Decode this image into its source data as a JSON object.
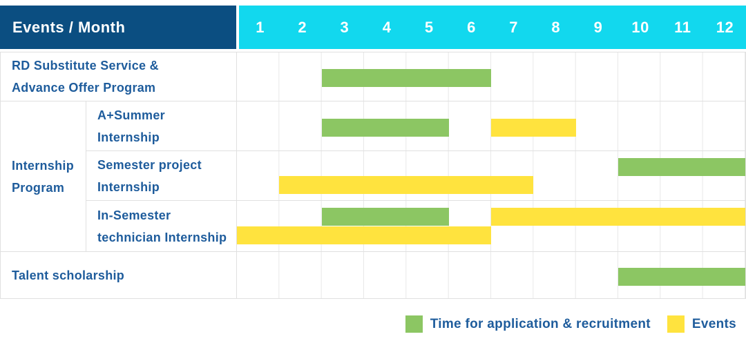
{
  "header": {
    "title": "Events / Month",
    "months": [
      "1",
      "2",
      "3",
      "4",
      "5",
      "6",
      "7",
      "8",
      "9",
      "10",
      "11",
      "12"
    ]
  },
  "colors": {
    "header_navy": "#0B4E81",
    "header_cyan": "#12D8EE",
    "application_green": "#8CC663",
    "event_yellow": "#FFE33E",
    "label_blue": "#1E5C9C",
    "border_gray": "#E0E0E0",
    "grid_line": "#E8E8E8"
  },
  "group_label_lines": [
    "Internship",
    "Program"
  ],
  "rows": [
    {
      "label_lines": [
        "RD Substitute Service &",
        "Advance Offer Program"
      ],
      "group": null,
      "bars": [
        {
          "type": "application",
          "start_month": 3,
          "end_month": 6,
          "line": "center"
        }
      ]
    },
    {
      "label_lines": [
        "A+Summer",
        "Internship"
      ],
      "group": "Internship Program",
      "bars": [
        {
          "type": "application",
          "start_month": 3,
          "end_month": 5,
          "line": "center"
        },
        {
          "type": "event",
          "start_month": 7,
          "end_month": 8,
          "line": "center"
        }
      ]
    },
    {
      "label_lines": [
        "Semester project",
        "Internship"
      ],
      "group": "Internship Program",
      "bars": [
        {
          "type": "application",
          "start_month": 10,
          "end_month": 12,
          "line": "upper"
        },
        {
          "type": "event",
          "start_month": 2,
          "end_month": 7,
          "line": "lower"
        }
      ]
    },
    {
      "label_lines": [
        "In-Semester",
        "technician Internship"
      ],
      "group": "Internship Program",
      "bars": [
        {
          "type": "application",
          "start_month": 3,
          "end_month": 5,
          "line": "upper"
        },
        {
          "type": "event",
          "start_month": 7,
          "end_month": 12,
          "line": "upper"
        },
        {
          "type": "event",
          "start_month": 1,
          "end_month": 6,
          "line": "lower"
        }
      ]
    },
    {
      "label_lines": [
        "Talent scholarship"
      ],
      "group": null,
      "bars": [
        {
          "type": "application",
          "start_month": 10,
          "end_month": 12,
          "line": "center"
        }
      ]
    }
  ],
  "legend": [
    {
      "type": "application",
      "label": "Time for application & recruitment",
      "color": "#8CC663"
    },
    {
      "type": "event",
      "label": "Events",
      "color": "#FFE33E"
    }
  ],
  "chart_data": {
    "type": "bar",
    "subtype": "gantt-schedule",
    "title": "Events / Month",
    "x_axis": {
      "label": "Month",
      "ticks": [
        1,
        2,
        3,
        4,
        5,
        6,
        7,
        8,
        9,
        10,
        11,
        12
      ],
      "range": [
        1,
        12
      ],
      "grid": true
    },
    "legend_position": "bottom-right",
    "legend": [
      {
        "name": "Time for application & recruitment",
        "color": "#8CC663"
      },
      {
        "name": "Events",
        "color": "#FFE33E"
      }
    ],
    "series": [
      {
        "event": "RD Substitute Service & Advance Offer Program",
        "category": null,
        "application_recruitment_month_ranges": [
          [
            3,
            6
          ]
        ],
        "event_month_ranges": []
      },
      {
        "event": "A+Summer Internship",
        "category": "Internship Program",
        "application_recruitment_month_ranges": [
          [
            3,
            5
          ]
        ],
        "event_month_ranges": [
          [
            7,
            8
          ]
        ]
      },
      {
        "event": "Semester project Internship",
        "category": "Internship Program",
        "application_recruitment_month_ranges": [
          [
            10,
            12
          ]
        ],
        "event_month_ranges": [
          [
            2,
            7
          ]
        ]
      },
      {
        "event": "In-Semester technician Internship",
        "category": "Internship Program",
        "application_recruitment_month_ranges": [
          [
            3,
            5
          ]
        ],
        "event_month_ranges": [
          [
            1,
            6
          ],
          [
            7,
            12
          ]
        ]
      },
      {
        "event": "Talent scholarship",
        "category": null,
        "application_recruitment_month_ranges": [
          [
            10,
            12
          ]
        ],
        "event_month_ranges": []
      }
    ]
  }
}
